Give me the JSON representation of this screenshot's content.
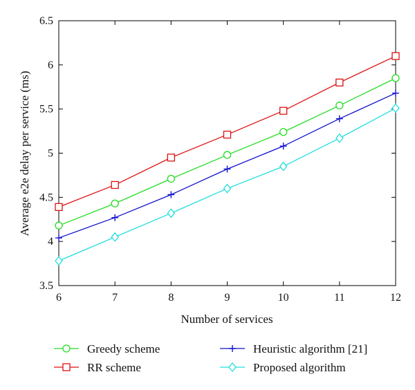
{
  "chart_data": {
    "type": "line",
    "title": "",
    "xlabel": "Number of services",
    "ylabel": "Average e2e delay per service (ms)",
    "x": [
      6,
      7,
      8,
      9,
      10,
      11,
      12
    ],
    "xlim": [
      6,
      12
    ],
    "ylim": [
      3.5,
      6.5
    ],
    "xticks": [
      "6",
      "7",
      "8",
      "9",
      "10",
      "11",
      "12"
    ],
    "yticks": [
      "3.5",
      "4",
      "4.5",
      "5",
      "5.5",
      "6",
      "6.5"
    ],
    "grid": false,
    "legend_position": "bottom",
    "series": [
      {
        "name": "Greedy scheme",
        "color": "#22dd22",
        "marker": "circle",
        "values": [
          4.18,
          4.43,
          4.71,
          4.98,
          5.24,
          5.54,
          5.85
        ]
      },
      {
        "name": "RR scheme",
        "color": "#dd1111",
        "marker": "square",
        "values": [
          4.39,
          4.64,
          4.95,
          5.21,
          5.48,
          5.8,
          6.1
        ]
      },
      {
        "name": "Heuristic algorithm [21]",
        "color": "#1111cc",
        "marker": "plus",
        "values": [
          4.04,
          4.27,
          4.53,
          4.82,
          5.08,
          5.39,
          5.68
        ]
      },
      {
        "name": "Proposed algorithm",
        "color": "#22dddd",
        "marker": "diamond",
        "values": [
          3.78,
          4.05,
          4.32,
          4.6,
          4.85,
          5.17,
          5.51
        ]
      }
    ]
  }
}
